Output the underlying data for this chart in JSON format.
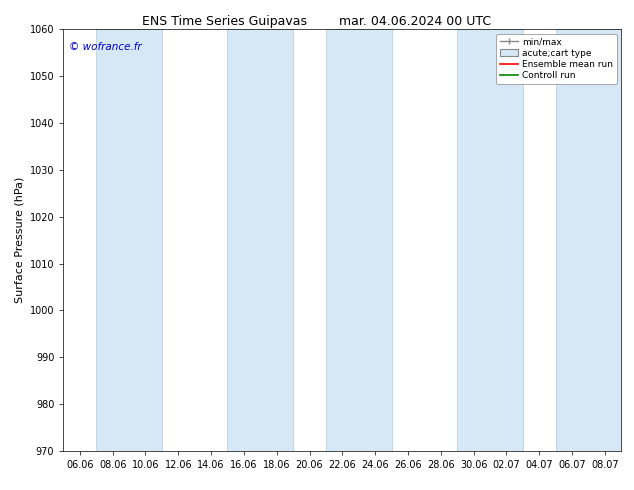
{
  "title": "ENS Time Series Guipavas",
  "title2": "mar. 04.06.2024 00 UTC",
  "ylabel": "Surface Pressure (hPa)",
  "ylim": [
    970,
    1060
  ],
  "yticks": [
    970,
    980,
    990,
    1000,
    1010,
    1020,
    1030,
    1040,
    1050,
    1060
  ],
  "xtick_labels": [
    "06.06",
    "08.06",
    "10.06",
    "12.06",
    "14.06",
    "16.06",
    "18.06",
    "20.06",
    "22.06",
    "24.06",
    "26.06",
    "28.06",
    "30.06",
    "02.07",
    "04.07",
    "06.07",
    "08.07"
  ],
  "copyright": "© wofrance.fr",
  "legend_entries": [
    "min/max",
    "acute;cart type",
    "Ensemble mean run",
    "Controll run"
  ],
  "band_color": "#d6e8f5",
  "band_edge_color": "#b0cce0",
  "background_color": "#ffffff",
  "ensemble_mean_color": "#ff0000",
  "control_run_color": "#008800",
  "title_fontsize": 9,
  "tick_fontsize": 7,
  "ylabel_fontsize": 8,
  "band_indices": [
    1,
    2,
    5,
    6,
    8,
    9,
    12,
    13,
    15,
    16
  ]
}
